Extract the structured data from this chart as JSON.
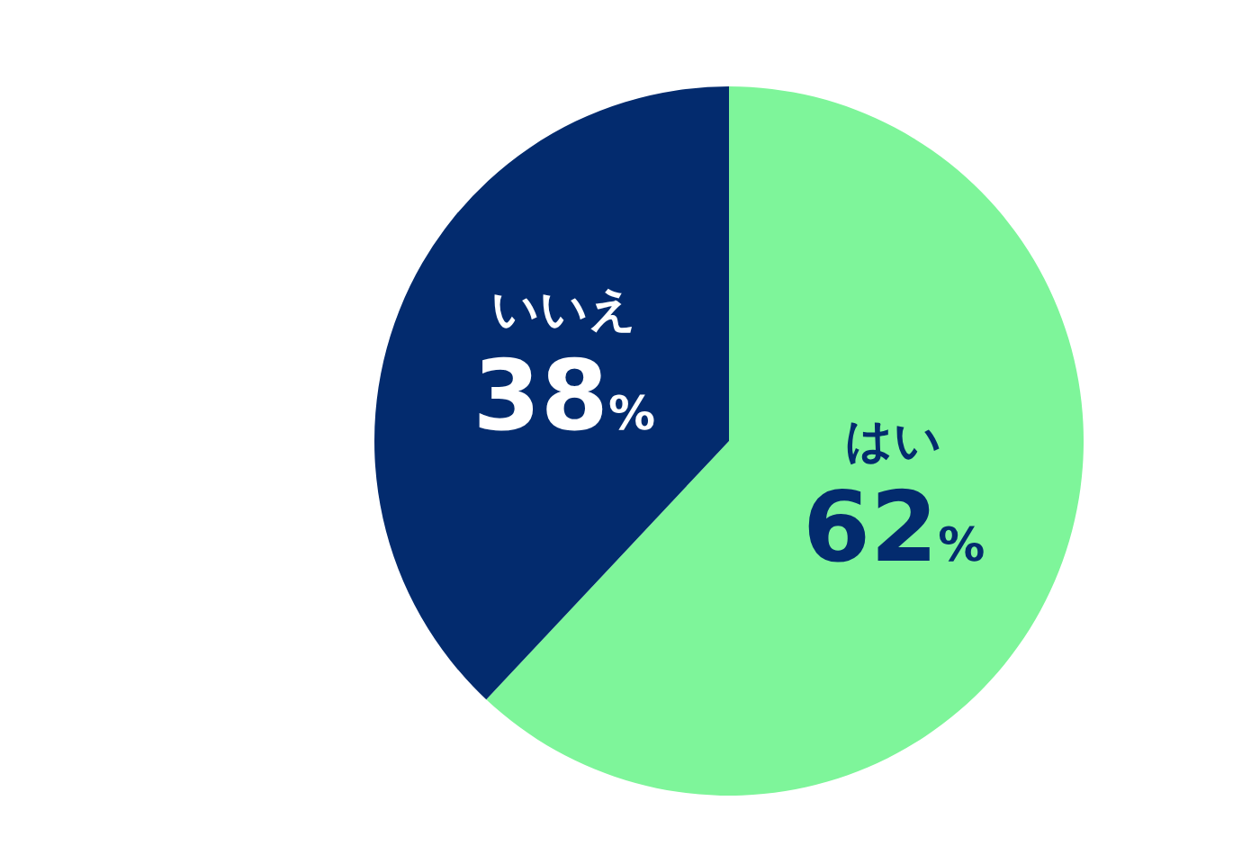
{
  "chart_data": {
    "type": "pie",
    "categories": [
      "はい",
      "いいえ"
    ],
    "values": [
      62,
      38
    ],
    "colors": [
      "#7ef59a",
      "#032b6e"
    ],
    "value_labels": [
      "62%",
      "38%"
    ],
    "legend": false
  }
}
